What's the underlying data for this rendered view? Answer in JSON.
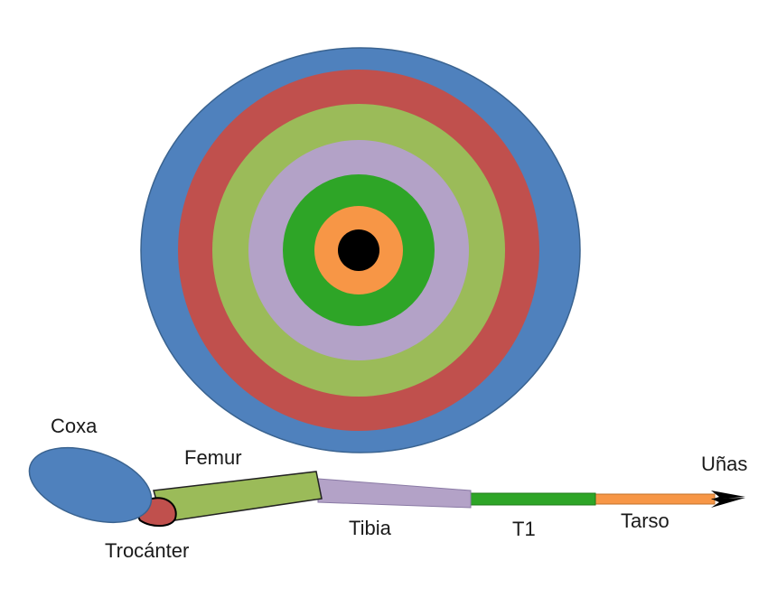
{
  "diagram": {
    "rings": [
      {
        "name": "coxa-ring",
        "color": "#4f81bd"
      },
      {
        "name": "trochanter-ring",
        "color": "#c0504d"
      },
      {
        "name": "femur-ring",
        "color": "#9bbb59"
      },
      {
        "name": "tibia-ring",
        "color": "#b3a2c7"
      },
      {
        "name": "t1-ring",
        "color": "#2ea527"
      },
      {
        "name": "tarsus-ring",
        "color": "#f79646"
      },
      {
        "name": "claw-ring",
        "color": "#000000"
      }
    ],
    "labels": {
      "coxa": "Coxa",
      "trochanter": "Trocánter",
      "femur": "Femur",
      "tibia": "Tibia",
      "t1": "T1",
      "tarsus": "Tarso",
      "claws": "Uñas"
    },
    "segment_colors": {
      "coxa": "#4f81bd",
      "trochanter": "#c0504d",
      "femur": "#9bbb59",
      "tibia": "#b3a2c7",
      "t1": "#2ea527",
      "tarsus": "#f79646",
      "claws": "#000000"
    }
  }
}
